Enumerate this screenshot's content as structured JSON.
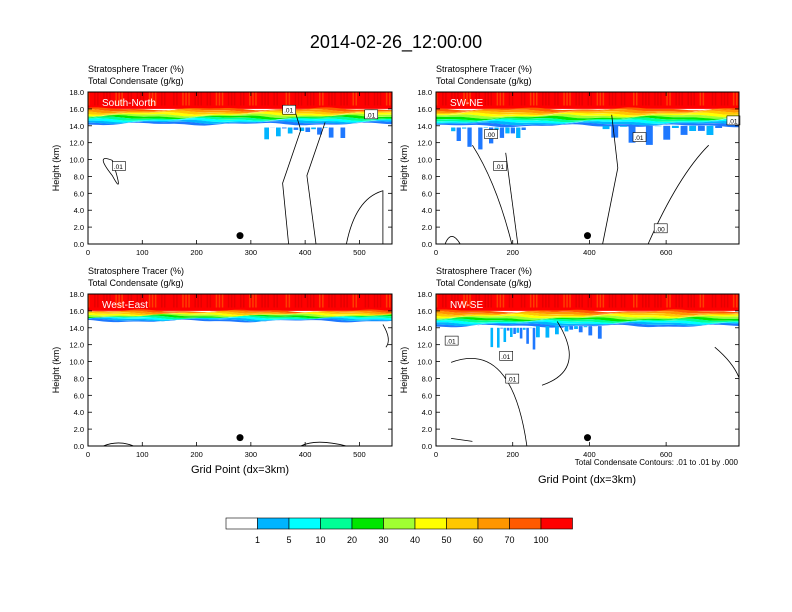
{
  "figure_title": "2014-02-26_12:00:00",
  "header_line1": "Stratosphere Tracer   (%)",
  "header_line2": "Total Condensate   (g/kg)",
  "ylabel": "Height (km)",
  "xlabel": "Grid Point (dx=3km)",
  "contour_note": "Total Condensate Contours: .01 to .01 by .000",
  "colors": {
    "levels": [
      "#ffffff",
      "#1e78ff",
      "#00b4ff",
      "#00ffff",
      "#00ff96",
      "#00e600",
      "#a0ff32",
      "#ffff00",
      "#ffc800",
      "#ff9600",
      "#ff5a00",
      "#ff0000"
    ],
    "contour": "#000000",
    "marker": "#000000"
  },
  "chart_data": [
    {
      "type": "heatmap",
      "panel_label": "South-North",
      "ylim": [
        0,
        18
      ],
      "xlim": [
        0,
        560
      ],
      "x_ticks": [
        "0",
        "100",
        "200",
        "300",
        "400",
        "500"
      ],
      "y_ticks": [
        "0.0",
        "2.0",
        "4.0",
        "6.0",
        "8.0",
        "10.0",
        "12.0",
        "14.0",
        "16.0",
        "18.0"
      ],
      "contour_labels": [
        ".01",
        ".01",
        ".01"
      ],
      "marker_x": 280,
      "marker_y": 1.0,
      "tracer_band_base_km": 14.2
    },
    {
      "type": "heatmap",
      "panel_label": "SW-NE",
      "ylim": [
        0,
        18
      ],
      "xlim": [
        0,
        790
      ],
      "x_ticks": [
        "0",
        "200",
        "400",
        "600"
      ],
      "y_ticks": [
        "0.0",
        "2.0",
        "4.0",
        "6.0",
        "8.0",
        "10.0",
        "12.0",
        "14.0",
        "16.0",
        "18.0"
      ],
      "contour_labels": [
        ".00",
        ".01",
        ".01",
        ".00",
        ".01"
      ],
      "marker_x": 395,
      "marker_y": 1.0,
      "tracer_band_base_km": 14.0
    },
    {
      "type": "heatmap",
      "panel_label": "West-East",
      "ylim": [
        0,
        18
      ],
      "xlim": [
        0,
        560
      ],
      "x_ticks": [
        "0",
        "100",
        "200",
        "300",
        "400",
        "500"
      ],
      "y_ticks": [
        "0.0",
        "2.0",
        "4.0",
        "6.0",
        "8.0",
        "10.0",
        "12.0",
        "14.0",
        "16.0",
        "18.0"
      ],
      "contour_labels": [],
      "marker_x": 280,
      "marker_y": 1.0,
      "tracer_band_base_km": 14.8
    },
    {
      "type": "heatmap",
      "panel_label": "NW-SE",
      "ylim": [
        0,
        18
      ],
      "xlim": [
        0,
        790
      ],
      "x_ticks": [
        "0",
        "200",
        "400",
        "600"
      ],
      "y_ticks": [
        "0.0",
        "2.0",
        "4.0",
        "6.0",
        "8.0",
        "10.0",
        "12.0",
        "14.0",
        "16.0",
        "18.0"
      ],
      "contour_labels": [
        ".01",
        ".01",
        ".01"
      ],
      "marker_x": 395,
      "marker_y": 1.0,
      "tracer_band_base_km": 14.2
    }
  ],
  "colorbar": {
    "labels": [
      "1",
      "5",
      "10",
      "20",
      "30",
      "40",
      "50",
      "60",
      "70",
      "100"
    ]
  }
}
